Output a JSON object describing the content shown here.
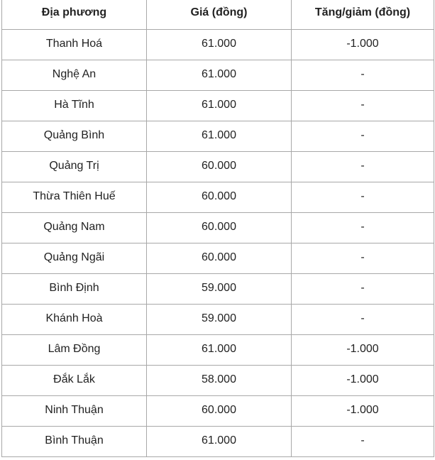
{
  "table": {
    "headers": [
      "Địa phương",
      "Giá (đồng)",
      "Tăng/giảm (đồng)"
    ],
    "rows": [
      [
        "Thanh Hoá",
        "61.000",
        "-1.000"
      ],
      [
        "Nghệ An",
        "61.000",
        "-"
      ],
      [
        "Hà Tĩnh",
        "61.000",
        "-"
      ],
      [
        "Quảng Bình",
        "61.000",
        "-"
      ],
      [
        "Quảng Trị",
        "60.000",
        "-"
      ],
      [
        "Thừa Thiên Huế",
        "60.000",
        "-"
      ],
      [
        "Quảng Nam",
        "60.000",
        "-"
      ],
      [
        "Quảng Ngãi",
        "60.000",
        "-"
      ],
      [
        "Bình Định",
        "59.000",
        "-"
      ],
      [
        "Khánh Hoà",
        "59.000",
        "-"
      ],
      [
        "Lâm Đồng",
        "61.000",
        "-1.000"
      ],
      [
        "Đắk Lắk",
        "58.000",
        "-1.000"
      ],
      [
        "Ninh Thuận",
        "60.000",
        "-1.000"
      ],
      [
        "Bình Thuận",
        "61.000",
        "-"
      ]
    ]
  }
}
